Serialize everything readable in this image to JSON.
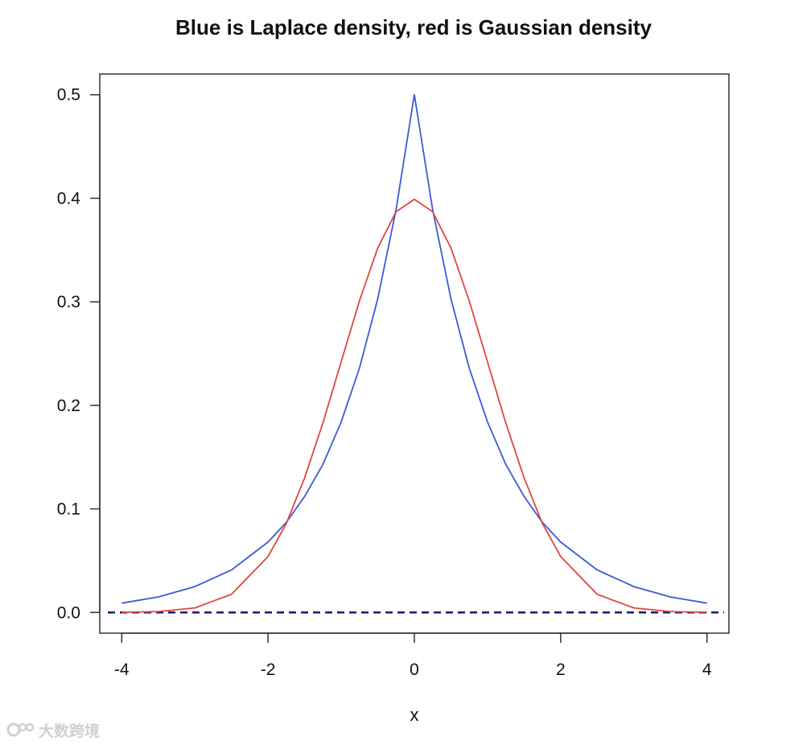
{
  "chart_data": {
    "type": "line",
    "title": "Blue is Laplace density, red is Gaussian density",
    "xlabel": "x",
    "ylabel": "",
    "xlim": [
      -4.3,
      4.3
    ],
    "ylim": [
      -0.02,
      0.52
    ],
    "x_ticks": [
      "-4",
      "-2",
      "0",
      "2",
      "4"
    ],
    "y_ticks": [
      "0.0",
      "0.1",
      "0.2",
      "0.3",
      "0.4",
      "0.5"
    ],
    "grid": false,
    "x": [
      -4.0,
      -3.5,
      -3.0,
      -2.5,
      -2.0,
      -1.75,
      -1.5,
      -1.25,
      -1.0,
      -0.75,
      -0.5,
      -0.25,
      0.0,
      0.25,
      0.5,
      0.75,
      1.0,
      1.25,
      1.5,
      1.75,
      2.0,
      2.5,
      3.0,
      3.5,
      4.0
    ],
    "series": [
      {
        "color": "#3c5ad6",
        "values": [
          0.009,
          0.015,
          0.025,
          0.041,
          0.068,
          0.087,
          0.112,
          0.143,
          0.184,
          0.236,
          0.303,
          0.389,
          0.5,
          0.389,
          0.303,
          0.236,
          0.184,
          0.143,
          0.112,
          0.087,
          0.068,
          0.041,
          0.025,
          0.015,
          0.009
        ]
      },
      {
        "color": "#e0453f",
        "values": [
          0.0001,
          0.0009,
          0.0044,
          0.0175,
          0.054,
          0.086,
          0.13,
          0.183,
          0.242,
          0.301,
          0.352,
          0.387,
          0.399,
          0.387,
          0.352,
          0.301,
          0.242,
          0.183,
          0.13,
          0.086,
          0.054,
          0.0175,
          0.0044,
          0.0009,
          0.0001
        ]
      }
    ],
    "reference_line": {
      "y": 0.0,
      "style": "dashed",
      "color": "#1a1a6e"
    }
  },
  "watermark": {
    "logo_icon": "watermark-logo-icon",
    "text": "大数跨境"
  }
}
